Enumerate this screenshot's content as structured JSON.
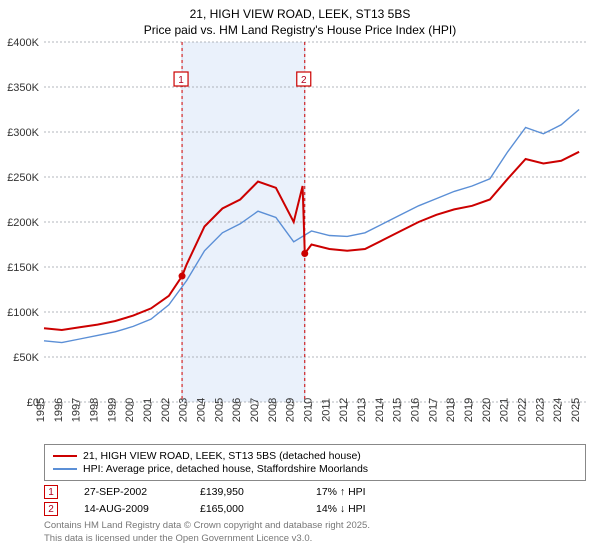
{
  "title": {
    "line1": "21, HIGH VIEW ROAD, LEEK, ST13 5BS",
    "line2": "Price paid vs. HM Land Registry's House Price Index (HPI)"
  },
  "chart": {
    "type": "line",
    "background_color": "#ffffff",
    "grid_color": "#9aa0a6",
    "grid_dash": "2 2",
    "band_fill": "#eaf1fb",
    "band_edge": "#c9d6ea",
    "x_years": [
      1995,
      1996,
      1997,
      1998,
      1999,
      2000,
      2001,
      2002,
      2003,
      2004,
      2005,
      2006,
      2007,
      2008,
      2009,
      2010,
      2011,
      2012,
      2013,
      2014,
      2015,
      2016,
      2017,
      2018,
      2019,
      2020,
      2021,
      2022,
      2023,
      2024,
      2025
    ],
    "xlim": [
      1995,
      2025.5
    ],
    "ylim": [
      0,
      400000
    ],
    "ytick_step": 50000,
    "ytick_labels": [
      "£0",
      "£50K",
      "£100K",
      "£150K",
      "£200K",
      "£250K",
      "£300K",
      "£350K",
      "£400K"
    ],
    "currency_prefix": "£",
    "band_range": [
      2002.74,
      2009.62
    ],
    "series": {
      "price_paid": {
        "color": "#cc0000",
        "width": 2,
        "values_by_year": {
          "1995": 82000,
          "1996": 80000,
          "1997": 83000,
          "1998": 86000,
          "1999": 90000,
          "2000": 96000,
          "2001": 104000,
          "2002": 118000,
          "2002.74": 139950,
          "2003": 153000,
          "2004": 195000,
          "2005": 215000,
          "2006": 225000,
          "2007": 245000,
          "2008": 238000,
          "2009": 200000,
          "2009.5": 240000,
          "2009.62": 165000,
          "2010": 175000,
          "2011": 170000,
          "2012": 168000,
          "2013": 170000,
          "2014": 180000,
          "2015": 190000,
          "2016": 200000,
          "2017": 208000,
          "2018": 214000,
          "2019": 218000,
          "2020": 225000,
          "2021": 248000,
          "2022": 270000,
          "2023": 265000,
          "2024": 268000,
          "2025": 278000
        }
      },
      "hpi": {
        "color": "#5b8fd6",
        "width": 1.4,
        "values_by_year": {
          "1995": 68000,
          "1996": 66000,
          "1997": 70000,
          "1998": 74000,
          "1999": 78000,
          "2000": 84000,
          "2001": 92000,
          "2002": 108000,
          "2003": 135000,
          "2004": 168000,
          "2005": 188000,
          "2006": 198000,
          "2007": 212000,
          "2008": 205000,
          "2009": 178000,
          "2010": 190000,
          "2011": 185000,
          "2012": 184000,
          "2013": 188000,
          "2014": 198000,
          "2015": 208000,
          "2016": 218000,
          "2017": 226000,
          "2018": 234000,
          "2019": 240000,
          "2020": 248000,
          "2021": 278000,
          "2022": 305000,
          "2023": 298000,
          "2024": 308000,
          "2025": 325000
        }
      }
    },
    "sale_markers": [
      {
        "n": "1",
        "year": 2002.74,
        "price": 139950
      },
      {
        "n": "2",
        "year": 2009.62,
        "price": 165000
      }
    ]
  },
  "legend": {
    "items": [
      {
        "color": "#cc0000",
        "label": "21, HIGH VIEW ROAD, LEEK, ST13 5BS (detached house)"
      },
      {
        "color": "#5b8fd6",
        "label": "HPI: Average price, detached house, Staffordshire Moorlands"
      }
    ]
  },
  "sales": [
    {
      "n": "1",
      "date": "27-SEP-2002",
      "price": "£139,950",
      "delta": "17% ↑ HPI"
    },
    {
      "n": "2",
      "date": "14-AUG-2009",
      "price": "£165,000",
      "delta": "14% ↓ HPI"
    }
  ],
  "footer": {
    "line1": "Contains HM Land Registry data © Crown copyright and database right 2025.",
    "line2": "This data is licensed under the Open Government Licence v3.0."
  }
}
